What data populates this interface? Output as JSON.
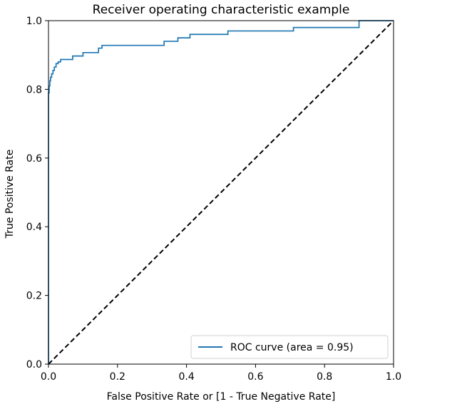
{
  "chart_data": {
    "type": "line",
    "title": "Receiver operating characteristic example",
    "xlabel": "False Positive Rate or [1 - True Negative Rate]",
    "ylabel": "True Positive Rate",
    "xlim": [
      0.0,
      1.0
    ],
    "ylim": [
      0.0,
      1.0
    ],
    "xticks": [
      "0.0",
      "0.2",
      "0.4",
      "0.6",
      "0.8",
      "1.0"
    ],
    "yticks": [
      "0.0",
      "0.2",
      "0.4",
      "0.6",
      "0.8",
      "1.0"
    ],
    "grid": false,
    "legend_position": "lower-right",
    "series": [
      {
        "name": "ROC curve (area = 0.95)",
        "color": "#1f77b4",
        "style": "solid",
        "x": [
          0.0,
          0.0,
          0.002,
          0.002,
          0.004,
          0.004,
          0.006,
          0.006,
          0.009,
          0.009,
          0.013,
          0.013,
          0.017,
          0.017,
          0.022,
          0.022,
          0.028,
          0.028,
          0.035,
          0.035,
          0.07,
          0.07,
          0.1,
          0.1,
          0.145,
          0.145,
          0.155,
          0.155,
          0.335,
          0.335,
          0.375,
          0.375,
          0.41,
          0.41,
          0.52,
          0.52,
          0.71,
          0.71,
          0.9,
          0.9,
          1.0
        ],
        "y": [
          0.0,
          0.79,
          0.79,
          0.81,
          0.81,
          0.825,
          0.825,
          0.835,
          0.835,
          0.845,
          0.845,
          0.855,
          0.855,
          0.865,
          0.865,
          0.875,
          0.875,
          0.88,
          0.88,
          0.887,
          0.887,
          0.897,
          0.897,
          0.907,
          0.907,
          0.92,
          0.92,
          0.928,
          0.928,
          0.94,
          0.94,
          0.95,
          0.95,
          0.96,
          0.96,
          0.97,
          0.97,
          0.98,
          0.98,
          1.0,
          1.0
        ]
      },
      {
        "color": "#000000",
        "style": "dashed",
        "x": [
          0.0,
          1.0
        ],
        "y": [
          0.0,
          1.0
        ]
      }
    ]
  }
}
